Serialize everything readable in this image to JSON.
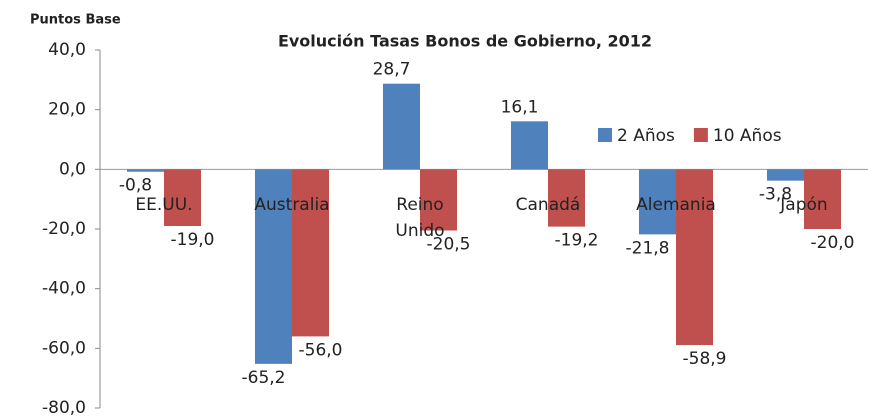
{
  "chart_data": {
    "type": "bar",
    "title": "Evolución Tasas Bonos de Gobierno, 2012",
    "y_axis_label": "Puntos Base",
    "categories": [
      "EE.UU.",
      "Australia",
      "Reino Unido",
      "Canadá",
      "Alemania",
      "Japón"
    ],
    "series": [
      {
        "name": "2 Años",
        "color": "#4f81bd",
        "values": [
          -0.8,
          -65.2,
          28.7,
          16.1,
          -21.8,
          -3.8
        ],
        "value_labels": [
          "-0,8",
          "-65,2",
          "28,7",
          "16,1",
          "-21,8",
          "-3,8"
        ]
      },
      {
        "name": "10 Años",
        "color": "#c0504d",
        "values": [
          -19.0,
          -56.0,
          -20.5,
          -19.2,
          -58.9,
          -20.0
        ],
        "value_labels": [
          "-19,0",
          "-56,0",
          "-20,5",
          "-19,2",
          "-58,9",
          "-20,0"
        ]
      }
    ],
    "ylim": [
      -80,
      40
    ],
    "yticks": [
      {
        "value": -80,
        "label": "-80,0"
      },
      {
        "value": -60,
        "label": "-60,0"
      },
      {
        "value": -40,
        "label": "-40,0"
      },
      {
        "value": -20,
        "label": "-20,0"
      },
      {
        "value": 0,
        "label": "0,0"
      },
      {
        "value": 20,
        "label": "20,0"
      },
      {
        "value": 40,
        "label": "40,0"
      }
    ],
    "grid": false,
    "legend": "right"
  }
}
